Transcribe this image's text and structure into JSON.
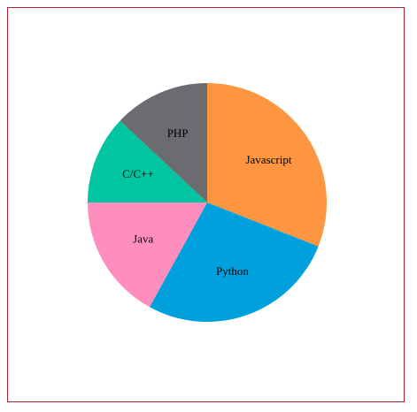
{
  "chart_data": {
    "type": "pie",
    "title": "",
    "categories": [
      "Javascript",
      "Python",
      "Java",
      "C/C++",
      "PHP"
    ],
    "values": [
      31,
      27,
      17,
      12,
      13
    ],
    "colors": [
      "#fd9541",
      "#00a0dc",
      "#fe8ebe",
      "#00c5a0",
      "#6c6b70"
    ],
    "legend": "none",
    "start_angle_deg": 0,
    "direction": "clockwise"
  }
}
